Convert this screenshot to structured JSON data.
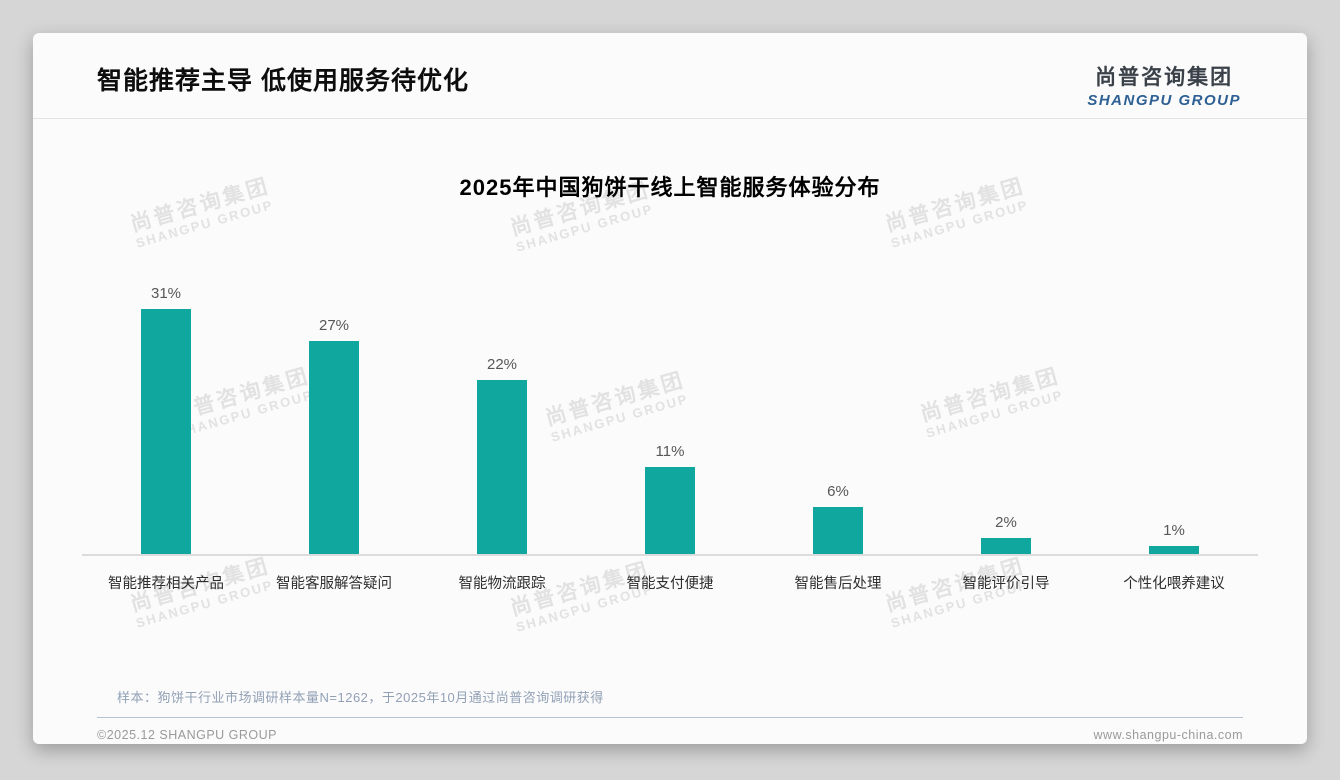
{
  "page": {
    "title": "智能推荐主导 低使用服务待优化"
  },
  "logo": {
    "cn": "尚普咨询集团",
    "en": "SHANGPU GROUP"
  },
  "watermark": {
    "line1": "尚普咨询集团",
    "line2": "SHANGPU GROUP"
  },
  "chart_data": {
    "type": "bar",
    "title": "2025年中国狗饼干线上智能服务体验分布",
    "categories": [
      "智能推荐相关产品",
      "智能客服解答疑问",
      "智能物流跟踪",
      "智能支付便捷",
      "智能售后处理",
      "智能评价引导",
      "个性化喂养建议"
    ],
    "values": [
      31,
      27,
      22,
      11,
      6,
      2,
      1
    ],
    "value_labels": [
      "31%",
      "27%",
      "22%",
      "11%",
      "6%",
      "2%",
      "1%"
    ],
    "unit": "%",
    "bar_color": "#10a79f",
    "ylim": [
      0,
      33
    ],
    "grid": false,
    "legend": false,
    "value_label_position": "above-bar"
  },
  "note": "样本：狗饼干行业市场调研样本量N=1262，于2025年10月通过尚普咨询调研获得",
  "footer": {
    "left": "©2025.12 SHANGPU GROUP",
    "right": "www.shangpu-china.com"
  }
}
